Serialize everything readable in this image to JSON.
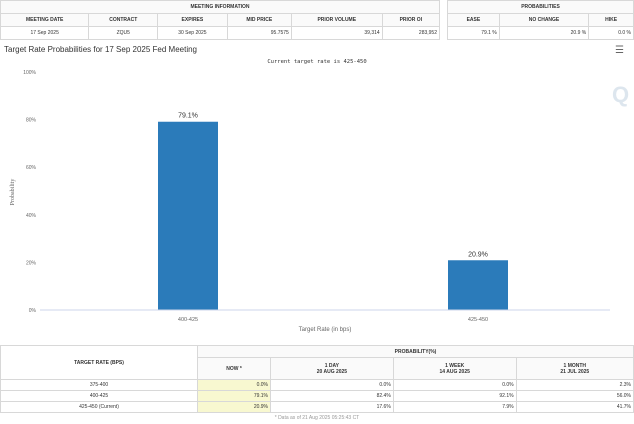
{
  "meeting_info": {
    "header": "MEETING INFORMATION",
    "columns": [
      "MEETING DATE",
      "CONTRACT",
      "EXPIRES",
      "MID PRICE",
      "PRIOR VOLUME",
      "PRIOR OI"
    ],
    "values": [
      "17 Sep 2025",
      "ZQU5",
      "30 Sep 2025",
      "95.7575",
      "39,314",
      "283,952"
    ]
  },
  "probabilities": {
    "header": "PROBABILITIES",
    "columns": [
      "EASE",
      "NO CHANGE",
      "HIKE"
    ],
    "values": [
      "79.1 %",
      "20.9 %",
      "0.0 %"
    ]
  },
  "chart_title": "Target Rate Probabilities for 17 Sep 2025 Fed Meeting",
  "menu_icon": "hamburger-menu-icon",
  "chart_data": {
    "type": "bar",
    "subtitle": "Current target rate is 425-450",
    "categories": [
      "400-425",
      "425-450"
    ],
    "values": [
      79.1,
      20.9
    ],
    "data_labels": [
      "79.1%",
      "20.9%"
    ],
    "xlabel": "Target Rate (in bps)",
    "ylabel": "Probability",
    "ylim": [
      0,
      100
    ],
    "yticks": [
      "0%",
      "20%",
      "40%",
      "60%",
      "80%",
      "100%"
    ],
    "bar_color": "#2b7bba",
    "grid": false
  },
  "bottom_table": {
    "col1": "TARGET RATE (BPS)",
    "group": "PROBABILITY(%)",
    "columns": [
      {
        "l1": "NOW *",
        "l2": ""
      },
      {
        "l1": "1 DAY",
        "l2": "20 AUG 2025"
      },
      {
        "l1": "1 WEEK",
        "l2": "14 AUG 2025"
      },
      {
        "l1": "1 MONTH",
        "l2": "21 JUL 2025"
      }
    ],
    "rows": [
      [
        "375-400",
        "0.0%",
        "0.0%",
        "0.0%",
        "2.3%"
      ],
      [
        "400-425",
        "79.1%",
        "82.4%",
        "92.1%",
        "56.0%"
      ],
      [
        "425-450 (Current)",
        "20.9%",
        "17.6%",
        "7.9%",
        "41.7%"
      ]
    ]
  },
  "footer": "* Data as of 21 Aug 2025 05:25:43 CT"
}
